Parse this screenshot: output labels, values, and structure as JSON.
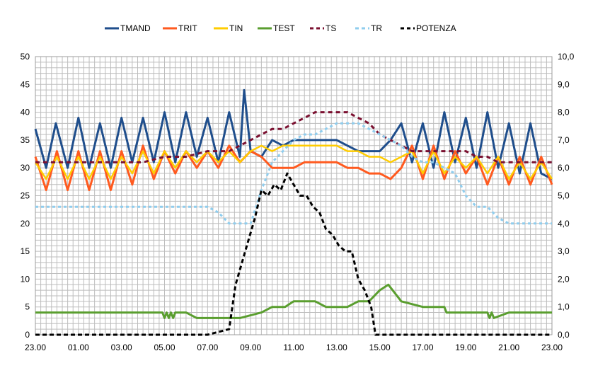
{
  "chart_data": {
    "type": "line",
    "legend_position": "top",
    "grid": true,
    "colors": {
      "TMAND": "#1f4e8c",
      "TRIT": "#ff5a1f",
      "TIN": "#ffcc00",
      "TEST": "#5a9e2f",
      "TS": "#7b1030",
      "TR": "#8fcdee",
      "POTENZA": "#000000"
    },
    "x_ticks": [
      "23.00",
      "01.00",
      "03.00",
      "05.00",
      "07.00",
      "09.00",
      "11.00",
      "13.00",
      "15.00",
      "17.00",
      "19.00",
      "21.00",
      "23.00"
    ],
    "x_range_hours": [
      0,
      24
    ],
    "y_left": {
      "min": 0,
      "max": 50,
      "ticks": [
        "0",
        "5",
        "10",
        "15",
        "20",
        "25",
        "30",
        "35",
        "40",
        "45",
        "50"
      ]
    },
    "y_right": {
      "min": 0,
      "max": 10,
      "ticks": [
        "0,0",
        "1,0",
        "2,0",
        "3,0",
        "4,0",
        "5,0",
        "6,0",
        "7,0",
        "8,0",
        "9,0",
        "10,0"
      ]
    },
    "series": [
      {
        "name": "TMAND",
        "axis": "left",
        "style": "solid",
        "x": [
          0,
          0.5,
          0.95,
          1.5,
          2.0,
          2.5,
          3.0,
          3.5,
          4.0,
          4.5,
          5.0,
          5.5,
          6.0,
          6.5,
          7.0,
          7.5,
          8.0,
          8.5,
          9.0,
          9.5,
          9.7,
          10.0,
          10.5,
          11.0,
          11.5,
          12.0,
          12.5,
          13.0,
          13.5,
          14.0,
          14.5,
          15.0,
          15.5,
          16.0,
          16.5,
          17.0,
          17.5,
          18.0,
          18.5,
          19.0,
          19.5,
          20.0,
          20.5,
          21.0,
          21.5,
          22.0,
          22.5,
          23.0,
          23.5,
          24.0
        ],
        "y": [
          37,
          30,
          38,
          30,
          39,
          30,
          38,
          30,
          39,
          31,
          39,
          31,
          40,
          31,
          40,
          32,
          39,
          31,
          40,
          32,
          44,
          33,
          32,
          35,
          34,
          35,
          35,
          35,
          35,
          35,
          34,
          33,
          33,
          33,
          35,
          38,
          31,
          38,
          30,
          40,
          31,
          39,
          30,
          40,
          30,
          38,
          29,
          38,
          29,
          28
        ]
      },
      {
        "name": "TRIT",
        "axis": "left",
        "style": "solid",
        "x": [
          0,
          0.5,
          1.0,
          1.5,
          2.0,
          2.5,
          3.0,
          3.5,
          4.0,
          4.5,
          5.0,
          5.5,
          6.0,
          6.5,
          7.0,
          7.5,
          8.0,
          8.5,
          9.0,
          9.5,
          10.0,
          10.5,
          11.0,
          11.5,
          12.0,
          12.5,
          13.0,
          13.5,
          14.0,
          14.5,
          15.0,
          15.5,
          16.0,
          16.5,
          17.0,
          17.5,
          18.0,
          18.5,
          19.0,
          19.5,
          20.0,
          20.5,
          21.0,
          21.5,
          22.0,
          22.5,
          23.0,
          23.5,
          24.0
        ],
        "y": [
          32,
          26,
          33,
          26,
          33,
          26,
          33,
          26,
          33,
          27,
          34,
          28,
          33,
          29,
          33,
          30,
          33,
          30,
          34,
          31,
          33,
          32,
          30,
          30,
          30,
          31,
          31,
          31,
          31,
          30,
          30,
          29,
          29,
          28,
          30,
          34,
          28,
          34,
          28,
          33,
          29,
          32,
          27,
          32,
          27,
          32,
          27,
          32,
          27
        ]
      },
      {
        "name": "TIN",
        "axis": "left",
        "style": "solid",
        "x": [
          0,
          0.5,
          1.0,
          1.5,
          2.0,
          2.5,
          3.0,
          3.5,
          4.0,
          4.5,
          5.0,
          5.5,
          6.0,
          6.5,
          7.0,
          7.5,
          8.0,
          8.5,
          9.0,
          9.5,
          10.0,
          10.5,
          11.0,
          11.5,
          12.0,
          12.5,
          13.0,
          13.5,
          14.0,
          14.5,
          15.0,
          15.5,
          16.0,
          16.5,
          17.0,
          17.5,
          18.0,
          18.5,
          19.0,
          19.5,
          20.0,
          20.5,
          21.0,
          21.5,
          22.0,
          22.5,
          23.0,
          23.5,
          24.0
        ],
        "y": [
          31,
          28,
          32,
          28,
          32,
          28,
          32,
          28,
          32,
          29,
          33,
          29,
          33,
          30,
          33,
          31,
          33,
          31,
          33,
          31,
          33,
          34,
          33,
          34,
          34,
          34,
          34,
          34,
          34,
          33,
          33,
          32,
          32,
          31,
          32,
          33,
          29,
          33,
          29,
          32,
          30,
          32,
          29,
          32,
          28,
          31,
          28,
          31,
          28
        ]
      },
      {
        "name": "TEST",
        "axis": "left",
        "style": "solid",
        "x": [
          0,
          2,
          4,
          5.9,
          6.0,
          6.1,
          6.2,
          6.3,
          6.4,
          6.5,
          6.6,
          7.0,
          7.5,
          8,
          9,
          9.5,
          10.5,
          11.0,
          11.6,
          12,
          13,
          13.5,
          14.5,
          15.0,
          15.5,
          16.0,
          16.4,
          17.0,
          18,
          19.0,
          19.1,
          20.0,
          21.0,
          21.1,
          21.2,
          21.3,
          22.0,
          23,
          24
        ],
        "y": [
          4,
          4,
          4,
          4,
          3,
          4,
          3,
          4,
          3,
          4,
          4,
          4,
          3,
          3,
          3,
          3,
          4,
          5,
          5,
          6,
          6,
          5,
          5,
          6,
          6,
          8,
          9,
          6,
          5,
          5,
          4,
          4,
          4,
          3,
          4,
          3,
          4,
          4,
          4
        ]
      },
      {
        "name": "TS",
        "axis": "left",
        "style": "dashed",
        "x": [
          0,
          0.5,
          1,
          2,
          3,
          4,
          5,
          6,
          7,
          8,
          9,
          9.5,
          10,
          10.5,
          11,
          11.5,
          12,
          12.5,
          13,
          13.5,
          14,
          14.5,
          15,
          15.5,
          16,
          16.5,
          17,
          17.5,
          18,
          18.5,
          19,
          19.5,
          20,
          20.5,
          21,
          21.5,
          22,
          22.5,
          23,
          23.5,
          24
        ],
        "y": [
          31,
          31,
          31,
          31,
          31,
          31,
          31,
          32,
          32,
          33,
          33,
          34,
          35,
          36,
          37,
          37,
          38,
          39,
          40,
          40,
          40,
          40,
          39,
          38,
          36,
          35,
          34,
          33,
          33,
          33,
          33,
          33,
          33,
          32,
          32,
          31,
          31,
          31,
          31,
          31,
          31
        ]
      },
      {
        "name": "TR",
        "axis": "left",
        "style": "dashed",
        "x": [
          0,
          1,
          2,
          3,
          4,
          5,
          6,
          7,
          8,
          8.5,
          9,
          9.5,
          10,
          10.5,
          11,
          11.5,
          12,
          12.5,
          13,
          13.5,
          14,
          14.5,
          15,
          15.5,
          16,
          16.5,
          17,
          17.5,
          18,
          18.5,
          19,
          19.5,
          20,
          20.5,
          21,
          21.5,
          22,
          23,
          24
        ],
        "y": [
          23,
          23,
          23,
          23,
          23,
          23,
          23,
          23,
          23,
          22,
          20,
          20,
          20,
          26,
          31,
          33,
          35,
          36,
          36,
          37,
          38,
          38,
          38,
          37,
          36,
          35,
          34,
          32,
          31,
          31,
          30,
          29,
          25,
          23,
          23,
          21,
          20,
          20,
          20
        ]
      },
      {
        "name": "POTENZA",
        "axis": "right",
        "style": "dashed",
        "x": [
          0,
          2,
          4,
          6,
          8,
          9,
          9.3,
          9.6,
          9.9,
          10.2,
          10.5,
          10.8,
          11.1,
          11.4,
          11.7,
          12.0,
          12.3,
          12.6,
          12.9,
          13.2,
          13.5,
          13.8,
          14.1,
          14.4,
          14.7,
          15.0,
          15.3,
          15.6,
          15.8,
          16.0,
          17,
          18,
          20,
          22,
          24
        ],
        "y": [
          0,
          0,
          0,
          0,
          0,
          0.2,
          1.8,
          2.6,
          3.4,
          4.2,
          5.2,
          5.0,
          5.4,
          5.2,
          5.8,
          5.4,
          5.0,
          5.0,
          4.6,
          4.4,
          3.8,
          3.6,
          3.2,
          3.0,
          3.0,
          2.0,
          1.6,
          1.0,
          0,
          0,
          0,
          0,
          0,
          0,
          0
        ]
      }
    ]
  }
}
